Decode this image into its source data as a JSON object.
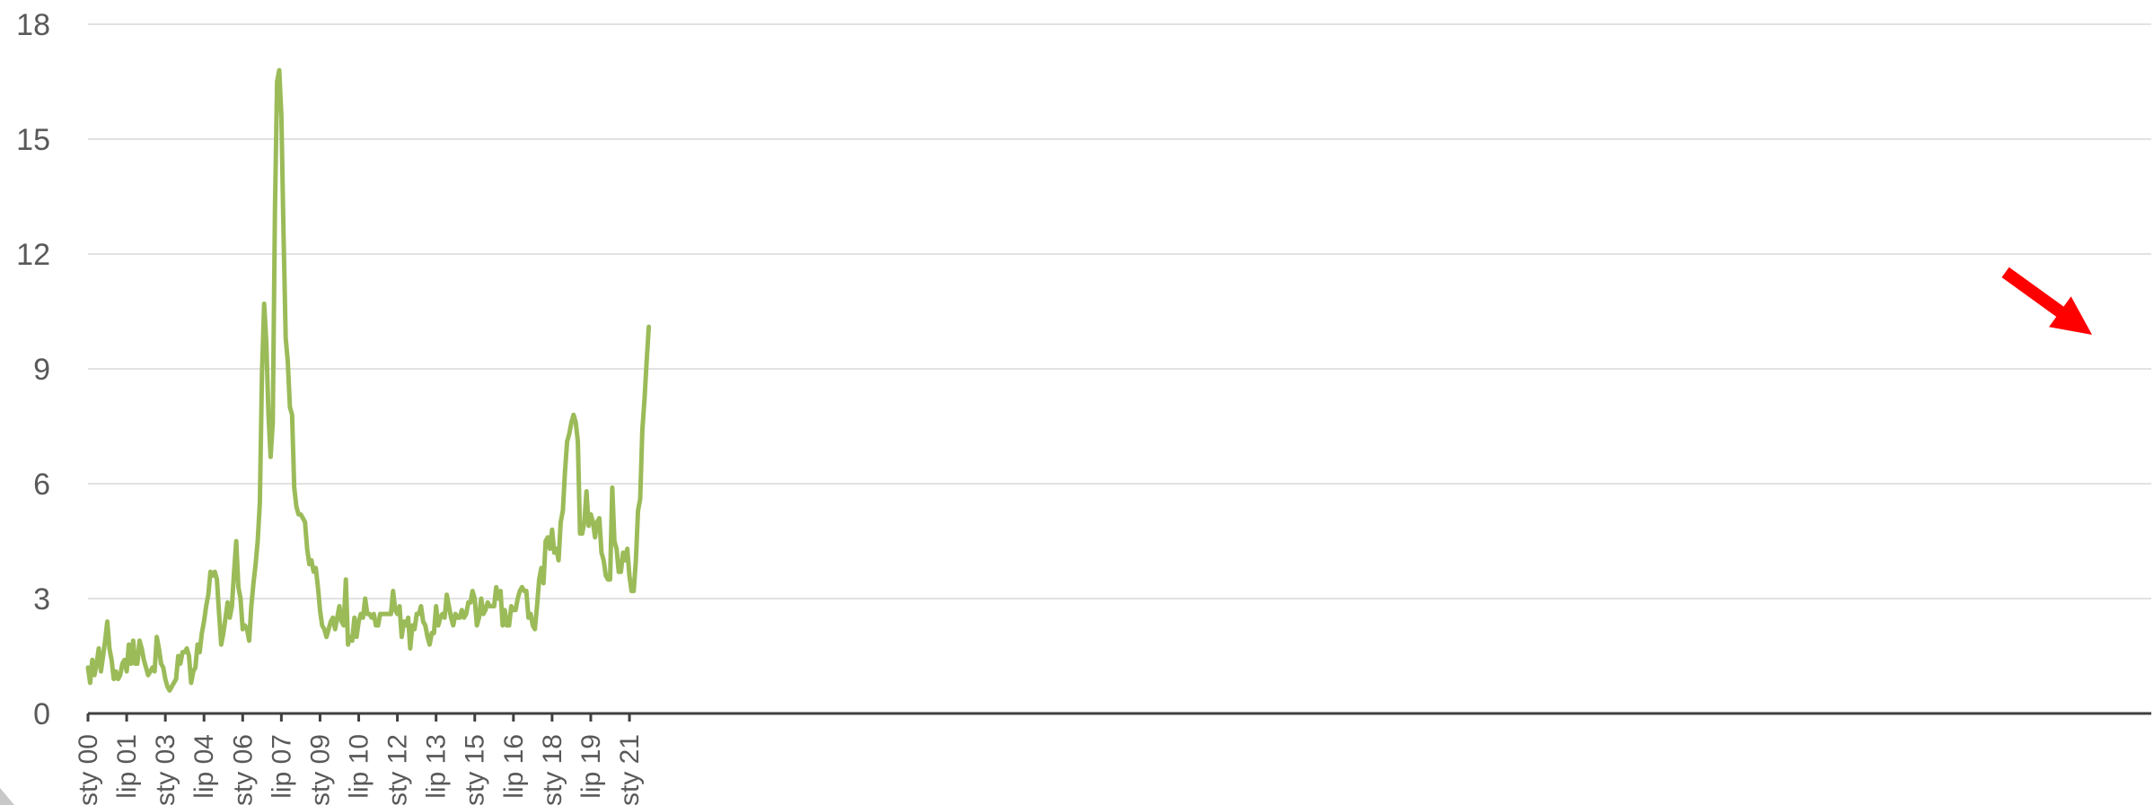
{
  "chart_data": {
    "type": "line",
    "title": "",
    "xlabel": "",
    "ylabel": "",
    "ylim": [
      0,
      18
    ],
    "yticks": [
      0,
      3,
      6,
      9,
      12,
      15,
      18
    ],
    "grid": true,
    "legend": "none",
    "x_ticks": [
      "sty 00",
      "lip 01",
      "sty 03",
      "lip 04",
      "sty 06",
      "lip 07",
      "sty 09",
      "lip 10",
      "sty 12",
      "lip 13",
      "sty 15",
      "lip 16",
      "sty 18",
      "lip 19",
      "sty 21"
    ],
    "x_start": "2000-01",
    "x_end": "2021-10",
    "series": [
      {
        "color": "#9bbb59",
        "values": [
          1.2,
          0.8,
          1.4,
          1.0,
          1.3,
          1.7,
          1.1,
          1.5,
          1.9,
          2.4,
          1.7,
          1.4,
          0.9,
          1.1,
          0.9,
          1.0,
          1.3,
          1.4,
          1.1,
          1.8,
          1.3,
          1.9,
          1.3,
          1.3,
          1.9,
          1.7,
          1.4,
          1.2,
          1.0,
          1.1,
          1.2,
          1.1,
          2.0,
          1.7,
          1.3,
          1.2,
          0.9,
          0.7,
          0.6,
          0.7,
          0.8,
          0.9,
          1.5,
          1.3,
          1.6,
          1.6,
          1.7,
          1.5,
          0.8,
          1.1,
          1.2,
          1.8,
          1.6,
          2.1,
          2.4,
          2.8,
          3.1,
          3.7,
          3.6,
          3.7,
          3.5,
          2.6,
          1.8,
          2.1,
          2.5,
          2.9,
          2.5,
          2.8,
          3.7,
          4.5,
          3.3,
          3.0,
          2.2,
          2.3,
          2.2,
          1.9,
          2.8,
          3.4,
          3.9,
          4.5,
          5.5,
          8.9,
          10.7,
          9.7,
          7.8,
          6.7,
          7.6,
          13.1,
          16.5,
          16.8,
          15.6,
          12.5,
          9.8,
          9.2,
          8.0,
          7.8,
          5.9,
          5.4,
          5.2,
          5.2,
          5.1,
          5.0,
          4.3,
          3.9,
          4.0,
          3.7,
          3.8,
          3.3,
          2.7,
          2.3,
          2.2,
          2.0,
          2.2,
          2.4,
          2.5,
          2.2,
          2.5,
          2.8,
          2.4,
          2.3,
          3.5,
          1.8,
          2.0,
          1.9,
          2.5,
          2.0,
          2.4,
          2.6,
          2.5,
          3.0,
          2.6,
          2.6,
          2.5,
          2.6,
          2.3,
          2.3,
          2.6,
          2.6,
          2.6,
          2.6,
          2.6,
          2.6,
          3.2,
          2.7,
          2.6,
          2.8,
          2.0,
          2.4,
          2.3,
          2.5,
          1.7,
          2.3,
          2.2,
          2.6,
          2.6,
          2.8,
          2.4,
          2.3,
          2.0,
          1.8,
          2.1,
          2.1,
          2.8,
          2.3,
          2.5,
          2.6,
          2.5,
          3.1,
          2.8,
          2.5,
          2.3,
          2.6,
          2.5,
          2.5,
          2.7,
          2.5,
          2.6,
          2.9,
          2.9,
          3.2,
          3.0,
          2.3,
          2.5,
          3.0,
          2.6,
          2.7,
          2.9,
          2.8,
          2.8,
          2.8,
          3.3,
          3.0,
          3.2,
          2.3,
          2.7,
          2.3,
          2.3,
          2.8,
          2.7,
          2.7,
          3.0,
          3.2,
          3.3,
          3.2,
          3.2,
          2.5,
          2.6,
          2.3,
          2.2,
          2.8,
          3.5,
          3.8,
          3.4,
          4.5,
          4.6,
          4.3,
          4.8,
          4.2,
          4.3,
          4.0,
          5.0,
          5.3,
          6.3,
          7.1,
          7.3,
          7.6,
          7.8,
          7.6,
          7.1,
          4.7,
          4.7,
          5.0,
          5.8,
          4.9,
          5.2,
          5.0,
          4.6,
          5.0,
          5.1,
          4.2,
          4.0,
          3.6,
          3.5,
          3.5,
          5.9,
          4.5,
          4.3,
          3.7,
          3.7,
          4.2,
          4.0,
          4.3,
          3.6,
          3.2,
          3.2,
          4.0,
          5.3,
          5.6,
          7.4,
          8.2,
          9.2,
          10.1
        ]
      }
    ],
    "annotations": [
      {
        "type": "arrow",
        "color": "#ff0000",
        "points_to": "last value"
      }
    ]
  }
}
